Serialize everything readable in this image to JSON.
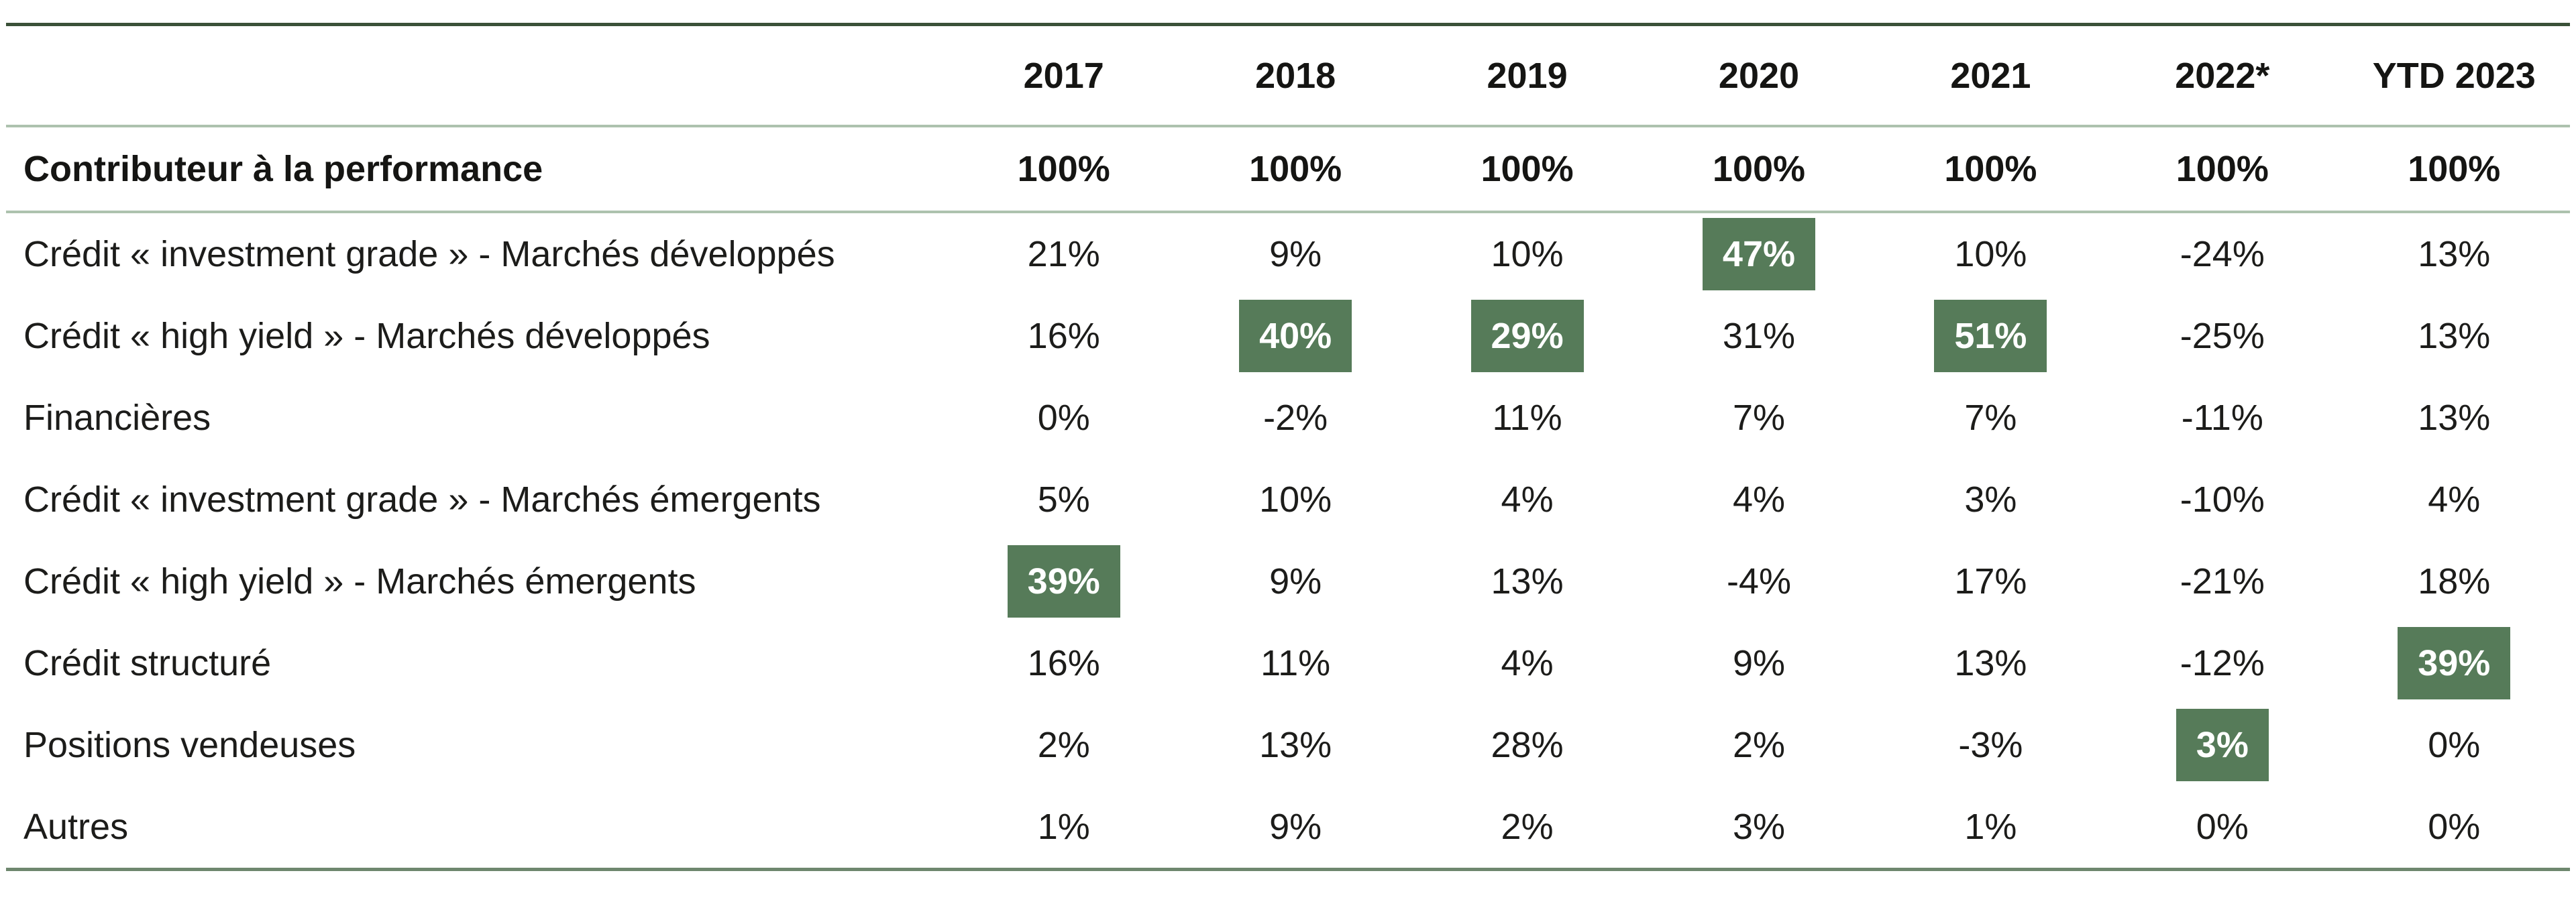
{
  "chart_data": {
    "type": "table",
    "columns": [
      "2017",
      "2018",
      "2019",
      "2020",
      "2021",
      "2022*",
      "YTD 2023"
    ],
    "total_row": {
      "label": "Contributeur à la performance",
      "values": [
        "100%",
        "100%",
        "100%",
        "100%",
        "100%",
        "100%",
        "100%"
      ]
    },
    "rows": [
      {
        "label": "Crédit « investment grade » - Marchés développés",
        "values": [
          "21%",
          "9%",
          "10%",
          "47%",
          "10%",
          "-24%",
          "13%"
        ],
        "highlights": [
          3
        ]
      },
      {
        "label": "Crédit « high yield » - Marchés développés",
        "values": [
          "16%",
          "40%",
          "29%",
          "31%",
          "51%",
          "-25%",
          "13%"
        ],
        "highlights": [
          1,
          2,
          4
        ]
      },
      {
        "label": "Financières",
        "values": [
          "0%",
          "-2%",
          "11%",
          "7%",
          "7%",
          "-11%",
          "13%"
        ],
        "highlights": []
      },
      {
        "label": "Crédit « investment grade » - Marchés émergents",
        "values": [
          "5%",
          "10%",
          "4%",
          "4%",
          "3%",
          "-10%",
          "4%"
        ],
        "highlights": []
      },
      {
        "label": "Crédit « high yield » - Marchés émergents",
        "values": [
          "39%",
          "9%",
          "13%",
          "-4%",
          "17%",
          "-21%",
          "18%"
        ],
        "highlights": [
          0
        ]
      },
      {
        "label": "Crédit structuré",
        "values": [
          "16%",
          "11%",
          "4%",
          "9%",
          "13%",
          "-12%",
          "39%"
        ],
        "highlights": [
          6
        ]
      },
      {
        "label": "Positions vendeuses",
        "values": [
          "2%",
          "13%",
          "28%",
          "2%",
          "-3%",
          "3%",
          "0%"
        ],
        "highlights": [
          5
        ]
      },
      {
        "label": "Autres",
        "values": [
          "1%",
          "9%",
          "2%",
          "3%",
          "1%",
          "0%",
          "0%"
        ],
        "highlights": []
      }
    ]
  },
  "colors": {
    "highlight_green": "#567b59",
    "top_border_green": "#3a5138",
    "bottom_border_green": "#6e876e",
    "separator_green": "#adc2ae",
    "text": "#1c1c1a"
  }
}
